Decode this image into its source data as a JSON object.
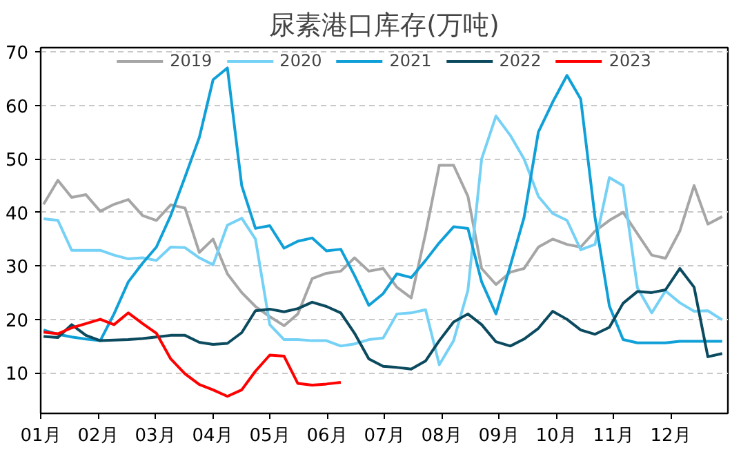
{
  "chart_data": {
    "type": "line",
    "title": "尿素港口库存(万吨)",
    "x": [
      1.05,
      1.3,
      1.54,
      1.79,
      2.04,
      2.28,
      2.53,
      2.78,
      3.02,
      3.27,
      3.52,
      3.77,
      4.01,
      4.26,
      4.51,
      4.75,
      5.0,
      5.25,
      5.49,
      5.74,
      5.99,
      6.24,
      6.48,
      6.73,
      6.98,
      7.22,
      7.47,
      7.72,
      7.96,
      8.21,
      8.46,
      8.7,
      8.95,
      9.2,
      9.44,
      9.69,
      9.94,
      10.19,
      10.43,
      10.68,
      10.93,
      11.17,
      11.42,
      11.67,
      11.91,
      12.16,
      12.41,
      12.65,
      12.9
    ],
    "xlim": [
      1,
      13
    ],
    "xticks": [
      {
        "value": 1,
        "label": "01月"
      },
      {
        "value": 2,
        "label": "02月"
      },
      {
        "value": 3,
        "label": "03月"
      },
      {
        "value": 4,
        "label": "04月"
      },
      {
        "value": 5,
        "label": "05月"
      },
      {
        "value": 6,
        "label": "06月"
      },
      {
        "value": 7,
        "label": "07月"
      },
      {
        "value": 8,
        "label": "08月"
      },
      {
        "value": 9,
        "label": "09月"
      },
      {
        "value": 10,
        "label": "10月"
      },
      {
        "value": 11,
        "label": "11月"
      },
      {
        "value": 12,
        "label": "12月"
      }
    ],
    "ylim": [
      2.4,
      70.8
    ],
    "yticks": [
      10,
      20,
      30,
      40,
      50,
      60,
      70
    ],
    "grid": "y",
    "legend": "top",
    "line_style": "solid",
    "series": [
      {
        "name": "2019",
        "color": "#a6a6a6",
        "values": [
          41.5,
          46,
          42.8,
          43.3,
          40.2,
          41.5,
          42.4,
          39.4,
          38.5,
          41.4,
          40.8,
          32.5,
          35,
          28.5,
          25,
          22.4,
          20.5,
          18.8,
          21,
          27.6,
          28.6,
          29,
          31.5,
          29,
          29.5,
          26,
          24,
          36,
          48.8,
          48.8,
          43,
          29.5,
          26.5,
          28.8,
          29.5,
          33.5,
          35,
          34,
          33.5,
          36.5,
          38.5,
          40,
          36,
          32,
          31.4,
          36.5,
          45,
          37.8,
          39.2
        ]
      },
      {
        "name": "2020",
        "color": "#75d1f5",
        "values": [
          38.8,
          38.5,
          32.9,
          32.9,
          32.9,
          32,
          31.3,
          31.5,
          31,
          33.5,
          33.4,
          31.5,
          30.2,
          37.6,
          38.9,
          35,
          19,
          16.2,
          16.2,
          16,
          16,
          15,
          15.4,
          16.2,
          16.5,
          21,
          21.2,
          21.8,
          11.5,
          16,
          25.4,
          50,
          58,
          54.4,
          50,
          43,
          39.8,
          38.5,
          33,
          34,
          46.5,
          45,
          25.9,
          21.2,
          25.3,
          23.1,
          21.5,
          21.6,
          19.9
        ]
      },
      {
        "name": "2021",
        "color": "#10a0d8",
        "values": [
          18,
          17.2,
          16.7,
          16.3,
          16,
          21,
          27,
          30.5,
          33.5,
          39.4,
          46.6,
          54,
          64.8,
          67,
          45,
          37,
          37.5,
          33.3,
          34.6,
          35.2,
          32.8,
          33.1,
          28.2,
          22.6,
          24.8,
          28.5,
          27.8,
          31,
          34.3,
          37.3,
          37,
          27,
          21,
          30,
          39,
          55,
          60.6,
          65.6,
          61.2,
          39,
          22.5,
          16.2,
          15.6,
          15.6,
          15.6,
          15.9,
          15.9,
          15.9,
          15.9
        ]
      },
      {
        "name": "2022",
        "color": "#0b4a5f",
        "values": [
          16.8,
          16.6,
          19,
          17,
          16,
          16.1,
          16.2,
          16.4,
          16.7,
          17,
          17,
          15.7,
          15.3,
          15.5,
          17.5,
          21.6,
          21.9,
          21.4,
          22,
          23.2,
          22.4,
          21.2,
          17.4,
          12.6,
          11.2,
          11,
          10.7,
          12.2,
          16,
          19.5,
          21,
          19,
          15.8,
          15,
          16.3,
          18.3,
          21.5,
          20,
          18,
          17.2,
          18.5,
          23,
          25.2,
          25,
          25.5,
          29.5,
          26,
          13,
          13.6
        ]
      },
      {
        "name": "2023",
        "color": "#ff0000",
        "x": [
          1.05,
          1.3,
          1.54,
          1.79,
          2.04,
          2.28,
          2.53,
          2.78,
          3.02,
          3.27,
          3.52,
          3.77,
          4.01,
          4.26,
          4.51,
          4.75,
          5.0,
          5.25,
          5.49,
          5.74,
          5.99,
          6.24
        ],
        "values": [
          17.6,
          17.3,
          18.4,
          19.2,
          20,
          19,
          21.2,
          19.2,
          17.4,
          12.6,
          9.8,
          7.8,
          6.8,
          5.6,
          6.8,
          10.3,
          13.3,
          13.1,
          8,
          7.7,
          7.9,
          8.2
        ]
      }
    ]
  }
}
